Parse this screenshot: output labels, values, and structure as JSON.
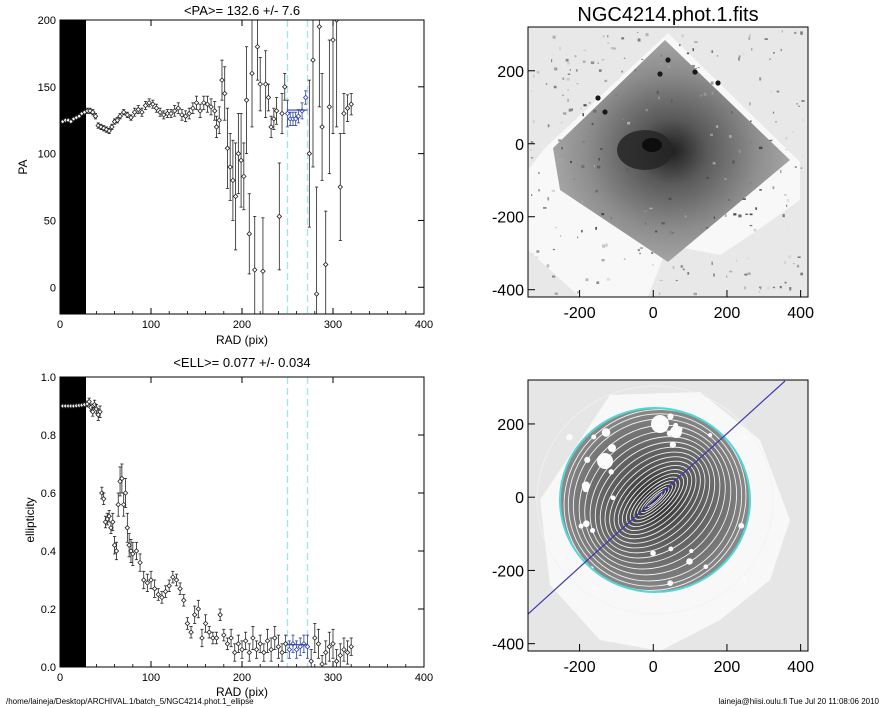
{
  "footer": {
    "left": "/home/laineja/Desktop/ARCHIVAL.1/batch_5/NGC4214.phot.1_ellipse",
    "right": "laineja@hiisi.oulu.fi  Tue Jul 20 11:08:06 2010"
  },
  "chart_data": [
    {
      "type": "scatter",
      "title": "<PA>= 132.6 +/-    7.6",
      "xlabel": "RAD (pix)",
      "ylabel": "PA",
      "xlim": [
        0,
        400
      ],
      "ylim": [
        -20,
        200
      ],
      "xticks": [
        0,
        100,
        200,
        300,
        400
      ],
      "yticks": [
        0,
        50,
        100,
        150,
        200
      ],
      "masked_radius": [
        0,
        26
      ],
      "vlines": [
        250,
        272
      ],
      "mean_marker": {
        "x": [
          250,
          272
        ],
        "y": 132.6
      },
      "points": [
        [
          3,
          124,
          1
        ],
        [
          6,
          125,
          1
        ],
        [
          9,
          125,
          1
        ],
        [
          12,
          124,
          1
        ],
        [
          15,
          126,
          1
        ],
        [
          18,
          127,
          1
        ],
        [
          21,
          128,
          1
        ],
        [
          24,
          130,
          1
        ],
        [
          27,
          131,
          1
        ],
        [
          30,
          132,
          2
        ],
        [
          33,
          132,
          2
        ],
        [
          36,
          131,
          2
        ],
        [
          39,
          128,
          2
        ],
        [
          42,
          121,
          2
        ],
        [
          45,
          120,
          2
        ],
        [
          48,
          119,
          2
        ],
        [
          51,
          118,
          2
        ],
        [
          54,
          117,
          2
        ],
        [
          57,
          120,
          2
        ],
        [
          60,
          124,
          2
        ],
        [
          63,
          125,
          2
        ],
        [
          66,
          128,
          2
        ],
        [
          70,
          131,
          2
        ],
        [
          74,
          129,
          2
        ],
        [
          78,
          127,
          2
        ],
        [
          82,
          131,
          3
        ],
        [
          86,
          133,
          3
        ],
        [
          90,
          131,
          3
        ],
        [
          94,
          136,
          3
        ],
        [
          98,
          138,
          3
        ],
        [
          102,
          137,
          3
        ],
        [
          106,
          134,
          3
        ],
        [
          110,
          131,
          3
        ],
        [
          114,
          129,
          3
        ],
        [
          118,
          130,
          3
        ],
        [
          122,
          130,
          3
        ],
        [
          126,
          132,
          4
        ],
        [
          130,
          134,
          4
        ],
        [
          134,
          129,
          4
        ],
        [
          138,
          128,
          4
        ],
        [
          142,
          130,
          4
        ],
        [
          146,
          134,
          4
        ],
        [
          150,
          138,
          5
        ],
        [
          154,
          132,
          5
        ],
        [
          158,
          138,
          5
        ],
        [
          162,
          137,
          6
        ],
        [
          166,
          135,
          6
        ],
        [
          170,
          132,
          7
        ],
        [
          172,
          120,
          8
        ],
        [
          175,
          125,
          10
        ],
        [
          178,
          155,
          15
        ],
        [
          181,
          145,
          20
        ],
        [
          184,
          104,
          30
        ],
        [
          187,
          90,
          25
        ],
        [
          190,
          80,
          30
        ],
        [
          193,
          68,
          40
        ],
        [
          196,
          100,
          30
        ],
        [
          199,
          95,
          35
        ],
        [
          202,
          83,
          25
        ],
        [
          205,
          140,
          40
        ],
        [
          208,
          40,
          30
        ],
        [
          211,
          160,
          40
        ],
        [
          214,
          13,
          40
        ],
        [
          217,
          180,
          25
        ],
        [
          220,
          152,
          20
        ],
        [
          223,
          12,
          40
        ],
        [
          226,
          152,
          25
        ],
        [
          229,
          142,
          10
        ],
        [
          232,
          120,
          8
        ],
        [
          235,
          126,
          8
        ],
        [
          238,
          132,
          10
        ],
        [
          241,
          53,
          40
        ],
        [
          244,
          130,
          15
        ],
        [
          247,
          150,
          10
        ],
        [
          250,
          130,
          10
        ],
        [
          253,
          126,
          5
        ],
        [
          256,
          126,
          5
        ],
        [
          259,
          126,
          5
        ],
        [
          262,
          128,
          5
        ],
        [
          266,
          132,
          6
        ],
        [
          270,
          142,
          5
        ],
        [
          274,
          100,
          55
        ],
        [
          278,
          170,
          80
        ],
        [
          282,
          -5,
          80
        ],
        [
          285,
          195,
          60
        ],
        [
          288,
          120,
          40
        ],
        [
          292,
          17,
          40
        ],
        [
          296,
          135,
          50
        ],
        [
          300,
          185,
          70
        ],
        [
          304,
          200,
          80
        ],
        [
          308,
          75,
          40
        ],
        [
          312,
          130,
          15
        ],
        [
          316,
          134,
          10
        ],
        [
          320,
          137,
          8
        ]
      ]
    },
    {
      "type": "scatter",
      "title": "<ELL>= 0.077 +/-  0.034",
      "xlabel": "RAD (pix)",
      "ylabel": "ellipticity",
      "xlim": [
        0,
        400
      ],
      "ylim": [
        0,
        1.0
      ],
      "xticks": [
        0,
        100,
        200,
        300,
        400
      ],
      "yticks": [
        0.0,
        0.2,
        0.4,
        0.6,
        0.8,
        1.0
      ],
      "masked_radius": [
        0,
        26
      ],
      "vlines": [
        250,
        272
      ],
      "mean_marker": {
        "x": [
          250,
          272
        ],
        "y": 0.077
      },
      "points": [
        [
          3,
          0.9,
          0.004
        ],
        [
          6,
          0.9,
          0.004
        ],
        [
          9,
          0.9,
          0.004
        ],
        [
          12,
          0.9,
          0.004
        ],
        [
          15,
          0.9,
          0.005
        ],
        [
          18,
          0.901,
          0.005
        ],
        [
          21,
          0.902,
          0.005
        ],
        [
          24,
          0.903,
          0.005
        ],
        [
          27,
          0.905,
          0.006
        ],
        [
          30,
          0.907,
          0.01
        ],
        [
          32,
          0.915,
          0.012
        ],
        [
          34,
          0.895,
          0.012
        ],
        [
          36,
          0.88,
          0.015
        ],
        [
          38,
          0.905,
          0.015
        ],
        [
          40,
          0.89,
          0.015
        ],
        [
          42,
          0.87,
          0.02
        ],
        [
          44,
          0.88,
          0.02
        ],
        [
          46,
          0.6,
          0.02
        ],
        [
          48,
          0.58,
          0.02
        ],
        [
          50,
          0.5,
          0.02
        ],
        [
          52,
          0.51,
          0.02
        ],
        [
          54,
          0.52,
          0.02
        ],
        [
          56,
          0.48,
          0.02
        ],
        [
          58,
          0.5,
          0.03
        ],
        [
          60,
          0.42,
          0.03
        ],
        [
          62,
          0.4,
          0.03
        ],
        [
          64,
          0.56,
          0.04
        ],
        [
          66,
          0.64,
          0.05
        ],
        [
          68,
          0.65,
          0.05
        ],
        [
          70,
          0.56,
          0.04
        ],
        [
          72,
          0.6,
          0.05
        ],
        [
          74,
          0.48,
          0.05
        ],
        [
          76,
          0.42,
          0.04
        ],
        [
          78,
          0.4,
          0.04
        ],
        [
          80,
          0.39,
          0.04
        ],
        [
          84,
          0.4,
          0.03
        ],
        [
          88,
          0.36,
          0.03
        ],
        [
          92,
          0.3,
          0.03
        ],
        [
          96,
          0.29,
          0.03
        ],
        [
          100,
          0.3,
          0.03
        ],
        [
          104,
          0.27,
          0.03
        ],
        [
          108,
          0.25,
          0.02
        ],
        [
          112,
          0.24,
          0.02
        ],
        [
          116,
          0.26,
          0.02
        ],
        [
          120,
          0.28,
          0.02
        ],
        [
          124,
          0.31,
          0.02
        ],
        [
          128,
          0.3,
          0.02
        ],
        [
          132,
          0.27,
          0.02
        ],
        [
          136,
          0.23,
          0.02
        ],
        [
          140,
          0.15,
          0.02
        ],
        [
          144,
          0.12,
          0.02
        ],
        [
          148,
          0.18,
          0.03
        ],
        [
          152,
          0.2,
          0.03
        ],
        [
          156,
          0.1,
          0.03
        ],
        [
          160,
          0.15,
          0.03
        ],
        [
          164,
          0.12,
          0.02
        ],
        [
          168,
          0.1,
          0.02
        ],
        [
          172,
          0.1,
          0.02
        ],
        [
          176,
          0.18,
          0.02
        ],
        [
          180,
          0.11,
          0.02
        ],
        [
          184,
          0.08,
          0.02
        ],
        [
          188,
          0.1,
          0.03
        ],
        [
          192,
          0.05,
          0.03
        ],
        [
          196,
          0.08,
          0.03
        ],
        [
          200,
          0.06,
          0.03
        ],
        [
          204,
          0.09,
          0.03
        ],
        [
          208,
          0.05,
          0.03
        ],
        [
          212,
          0.1,
          0.04
        ],
        [
          216,
          0.06,
          0.03
        ],
        [
          220,
          0.08,
          0.03
        ],
        [
          224,
          0.05,
          0.03
        ],
        [
          228,
          0.09,
          0.04
        ],
        [
          232,
          0.06,
          0.04
        ],
        [
          236,
          0.1,
          0.04
        ],
        [
          240,
          0.07,
          0.04
        ],
        [
          244,
          0.05,
          0.03
        ],
        [
          248,
          0.08,
          0.03
        ],
        [
          252,
          0.06,
          0.03
        ],
        [
          256,
          0.08,
          0.03
        ],
        [
          260,
          0.06,
          0.03
        ],
        [
          264,
          0.07,
          0.03
        ],
        [
          268,
          0.08,
          0.03
        ],
        [
          272,
          0.07,
          0.04
        ],
        [
          276,
          0.02,
          0.04
        ],
        [
          280,
          0.1,
          0.05
        ],
        [
          284,
          0.08,
          0.05
        ],
        [
          288,
          0.01,
          0.03
        ],
        [
          292,
          0.05,
          0.04
        ],
        [
          296,
          0.07,
          0.05
        ],
        [
          300,
          0.08,
          0.05
        ],
        [
          304,
          0.02,
          0.04
        ],
        [
          308,
          0.04,
          0.04
        ],
        [
          312,
          0.06,
          0.04
        ],
        [
          316,
          0.05,
          0.04
        ],
        [
          320,
          0.07,
          0.03
        ]
      ]
    },
    {
      "type": "heatmap",
      "title": "NGC4214.phot.1.fits",
      "xlim": [
        -340,
        420
      ],
      "ylim": [
        -420,
        320
      ],
      "xticks": [
        -200,
        0,
        200,
        400
      ],
      "yticks": [
        -400,
        -200,
        0,
        200
      ],
      "description_colors": [
        "#e6e6e6",
        "#8c8c8c",
        "#2a2a2a"
      ]
    },
    {
      "type": "heatmap",
      "title": "",
      "xlim": [
        -340,
        420
      ],
      "ylim": [
        -420,
        320
      ],
      "xticks": [
        -200,
        0,
        200,
        400
      ],
      "yticks": [
        -400,
        -200,
        0,
        200
      ],
      "overlay": {
        "ellipse_count": 20,
        "outer_ellipse_color": "#4fd6d6",
        "pa_line_color": "#3a3ab0",
        "pa_deg": 132.6
      }
    }
  ]
}
